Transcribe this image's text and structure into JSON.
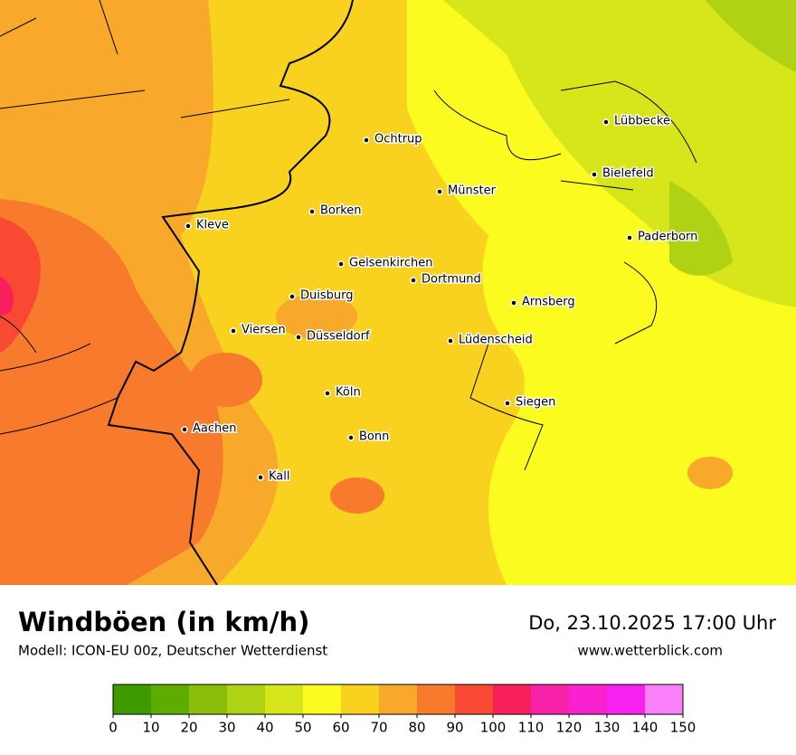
{
  "header": {
    "title": "Windböen (in km/h)",
    "subtitle": "Modell: ICON-EU 00z, Deutscher Wetterdienst",
    "datetime": "Do, 23.10.2025 17:00 Uhr",
    "website": "www.wetterblick.com"
  },
  "map": {
    "cities": [
      "Ochtrup",
      "Lübbecke",
      "Bielefeld",
      "Münster",
      "Borken",
      "Kleve",
      "Paderborn",
      "Gelsenkirchen",
      "Dortmund",
      "Arnsberg",
      "Duisburg",
      "Viersen",
      "Düsseldorf",
      "Lüdenscheid",
      "Köln",
      "Siegen",
      "Aachen",
      "Bonn",
      "Kall"
    ]
  },
  "colorbar": {
    "ticks": [
      0,
      10,
      20,
      30,
      40,
      50,
      60,
      70,
      80,
      90,
      100,
      110,
      120,
      130,
      140,
      150
    ],
    "colors": [
      "#3f9a00",
      "#5fac00",
      "#8abe0a",
      "#b0d215",
      "#d6e61a",
      "#fbfb20",
      "#f9d21f",
      "#f8a82a",
      "#f87a2c",
      "#f84a33",
      "#f8205a",
      "#f822a8",
      "#f822d0",
      "#f822f0",
      "#fa80fa"
    ]
  }
}
